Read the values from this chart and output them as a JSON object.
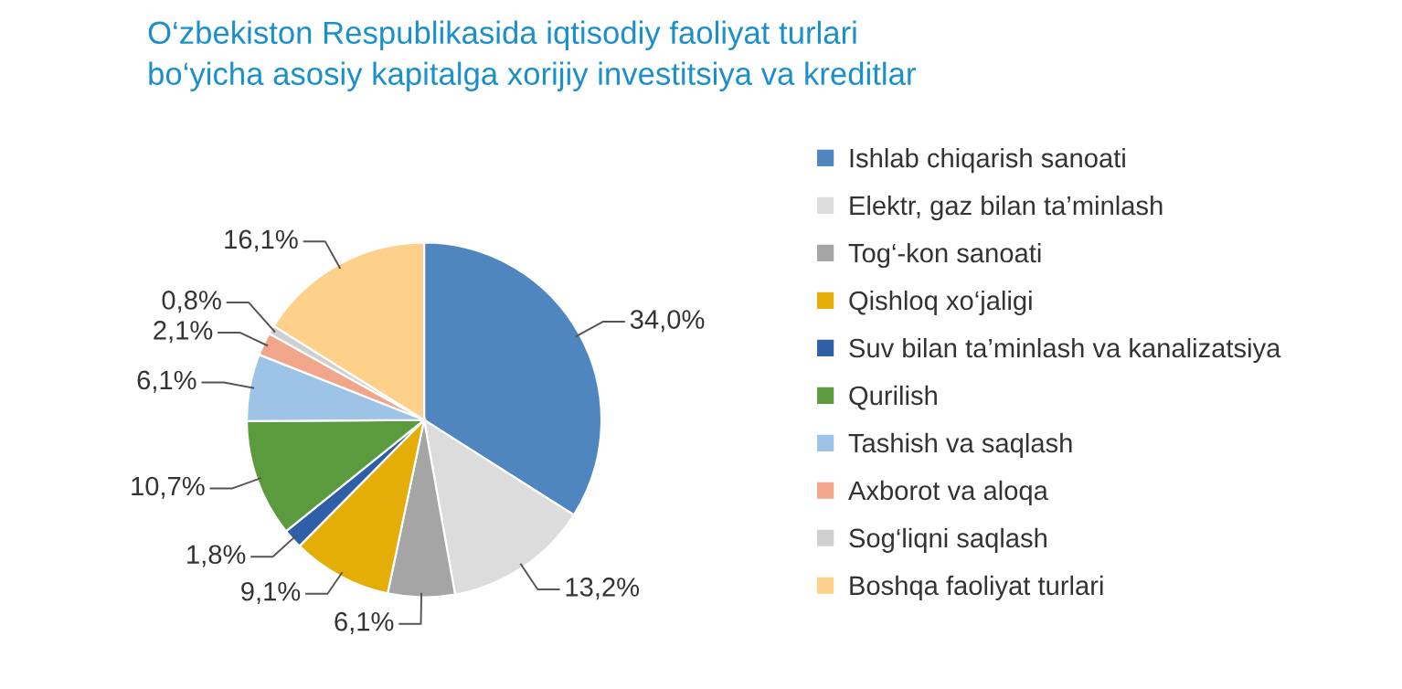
{
  "chart_data": {
    "type": "pie",
    "title": "O‘zbekiston Respublikasida iqtisodiy faoliyat turlari\nbo‘yicha asosiy kapitalga xorijiy investitsiya va kreditlar",
    "categories": [
      "Ishlab chiqarish sanoati",
      "Elektr, gaz bilan ta’minlash",
      "Tog‘-kon sanoati",
      "Qishloq xo‘jaligi",
      "Suv bilan ta’minlash va kanalizatsiya",
      "Qurilish",
      "Tashish va saqlash",
      "Axborot va aloqa",
      "Sog‘liqni saqlash",
      "Boshqa faoliyat turlari"
    ],
    "values": [
      34.0,
      13.2,
      6.1,
      9.1,
      1.8,
      10.7,
      6.1,
      2.1,
      0.8,
      16.1
    ],
    "value_labels": [
      "34,0%",
      "13,2%",
      "6,1%",
      "9,1%",
      "1,8%",
      "10,7%",
      "6,1%",
      "2,1%",
      "0,8%",
      "16,1%"
    ],
    "colors": [
      "#4f86c0",
      "#dcdcdc",
      "#a5a5a5",
      "#e4ad07",
      "#2f5fa6",
      "#5b9b3d",
      "#9dc3e6",
      "#f1a58b",
      "#cfcfcf",
      "#fdd18a"
    ],
    "legend": "right"
  }
}
